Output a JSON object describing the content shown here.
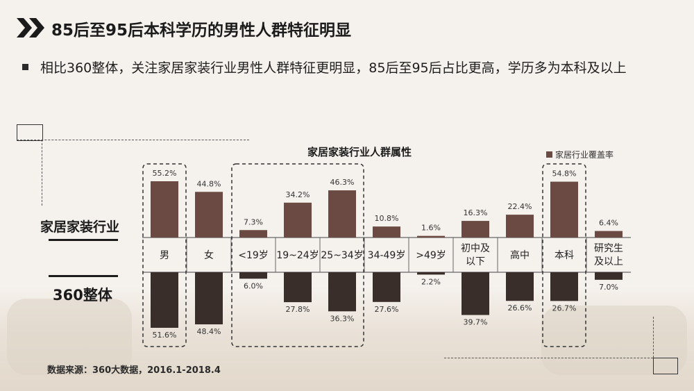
{
  "header": {
    "title": "85后至95后本科学历的男性人群特征明显",
    "bullet": "相比360整体，关注家居家装行业男性人群特征更明显，85后至95后占比更高，学历多为本科及以上"
  },
  "row_labels": {
    "top": "家居家装行业",
    "bottom": "360整体"
  },
  "source": "数据来源：360大数据，2016.1-2018.4",
  "colors": {
    "industry_bar": "#6b4a43",
    "overall_bar": "#3a2e2b",
    "highlight_dash": "#333333"
  },
  "chart_data": {
    "type": "bar",
    "title": "家居家装行业人群属性",
    "legend": "家居行业覆盖率",
    "legend_position": "top-right",
    "categories": [
      "男",
      "女",
      "<19岁",
      "19~24岁",
      "25~34岁",
      "34-49岁",
      ">49岁",
      "初中及以下",
      "高中",
      "本科",
      "研究生及以上"
    ],
    "category_lines": [
      [
        "男"
      ],
      [
        "女"
      ],
      [
        "<19岁"
      ],
      [
        "19~24岁"
      ],
      [
        "25~34岁"
      ],
      [
        "34-49岁"
      ],
      [
        ">49岁"
      ],
      [
        "初中及",
        "以下"
      ],
      [
        "高中"
      ],
      [
        "本科"
      ],
      [
        "研究生",
        "及以上"
      ]
    ],
    "series": [
      {
        "name": "家居行业覆盖率",
        "values": [
          55.2,
          44.8,
          7.3,
          34.2,
          46.3,
          10.8,
          1.6,
          16.3,
          22.4,
          54.8,
          6.4
        ],
        "labels": [
          "55.2%",
          "44.8%",
          "7.3%",
          "34.2%",
          "46.3%",
          "10.8%",
          "1.6%",
          "16.3%",
          "22.4%",
          "54.8%",
          "6.4%"
        ]
      },
      {
        "name": "",
        "values": [
          51.6,
          48.4,
          6.0,
          27.8,
          36.3,
          27.6,
          2.2,
          39.7,
          26.6,
          26.7,
          7.0
        ],
        "labels": [
          "51.6%",
          "48.4%",
          "6.0%",
          "27.8%",
          "36.3%",
          "27.6%",
          "2.2%",
          "39.7%",
          "26.6%",
          "26.7%",
          "7.0%"
        ]
      }
    ],
    "highlight_groups": [
      [
        0,
        0
      ],
      [
        2,
        4
      ],
      [
        9,
        9
      ]
    ],
    "ylim": [
      0,
      60
    ],
    "grid": false
  }
}
